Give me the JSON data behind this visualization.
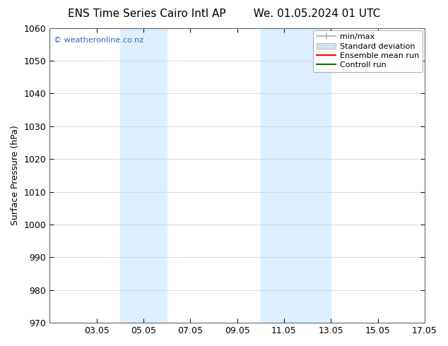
{
  "title_left": "ENS Time Series Cairo Intl AP",
  "title_right": "We. 01.05.2024 01 UTC",
  "ylabel": "Surface Pressure (hPa)",
  "ylim": [
    970,
    1060
  ],
  "yticks": [
    970,
    980,
    990,
    1000,
    1010,
    1020,
    1030,
    1040,
    1050,
    1060
  ],
  "xlim_start": 1.05,
  "xlim_end": 17.05,
  "xticks": [
    3.05,
    5.05,
    7.05,
    9.05,
    11.05,
    13.05,
    15.05,
    17.05
  ],
  "xlabel_labels": [
    "03.05",
    "05.05",
    "07.05",
    "09.05",
    "11.05",
    "13.05",
    "15.05",
    "17.05"
  ],
  "shaded_bands": [
    {
      "x_start": 4.05,
      "x_end": 6.05
    },
    {
      "x_start": 10.05,
      "x_end": 13.05
    }
  ],
  "shaded_color": "#ddeeff",
  "background_color": "#ffffff",
  "plot_bg_color": "#ffffff",
  "watermark_text": "© weatheronline.co.nz",
  "watermark_color": "#3366bb",
  "legend_items": [
    {
      "label": "min/max",
      "color": "#aaaaaa",
      "lw": 1.2
    },
    {
      "label": "Standard deviation",
      "color": "#d0e4f0",
      "lw": 6
    },
    {
      "label": "Ensemble mean run",
      "color": "#ff0000",
      "lw": 1.5
    },
    {
      "label": "Controll run",
      "color": "#007700",
      "lw": 1.5
    }
  ],
  "tick_fontsize": 9,
  "label_fontsize": 9,
  "title_fontsize": 11,
  "grid_color": "#cccccc",
  "grid_lw": 0.5
}
